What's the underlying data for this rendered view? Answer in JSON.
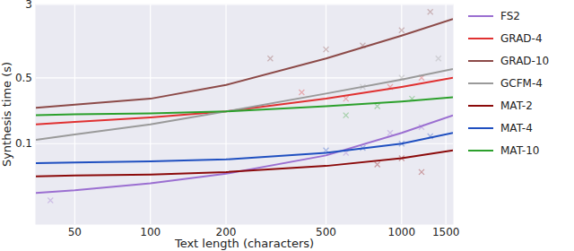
{
  "chart_data": {
    "type": "line",
    "x_label": "Text length (characters)",
    "y_label": "Synthesis time (s)",
    "log": true,
    "grid": true,
    "legend": "right",
    "marker": "x",
    "xlim": [
      35,
      1600
    ],
    "ylim": [
      0.014,
      3
    ],
    "xticks": [
      50,
      100,
      200,
      500,
      1000,
      1500
    ],
    "yticks": [
      0.1,
      0.5,
      3
    ],
    "x": [
      35,
      50,
      100,
      200,
      500,
      1000,
      1600
    ],
    "series": [
      {
        "name": "FS2",
        "color": "#9b6fd1",
        "values": [
          0.03,
          0.032,
          0.038,
          0.048,
          0.075,
          0.13,
          0.2
        ],
        "scatter_x": [
          40,
          600,
          900,
          1200
        ],
        "scatter_y": [
          0.025,
          0.08,
          0.13,
          0.15
        ]
      },
      {
        "name": "GRAD-4",
        "color": "#e03131",
        "values": [
          0.16,
          0.17,
          0.19,
          0.22,
          0.3,
          0.4,
          0.5
        ],
        "scatter_x": [
          400,
          600,
          900,
          1200
        ],
        "scatter_y": [
          0.35,
          0.3,
          0.4,
          0.5
        ]
      },
      {
        "name": "GRAD-10",
        "color": "#8c4a48",
        "values": [
          0.24,
          0.26,
          0.3,
          0.42,
          0.8,
          1.4,
          2.1
        ],
        "scatter_x": [
          300,
          500,
          700,
          1000,
          1300
        ],
        "scatter_y": [
          0.8,
          1.0,
          1.1,
          1.6,
          2.5
        ]
      },
      {
        "name": "GCFM-4",
        "color": "#9a9a9a",
        "values": [
          0.11,
          0.125,
          0.16,
          0.22,
          0.34,
          0.48,
          0.62
        ],
        "scatter_x": [
          700,
          1000,
          1400
        ],
        "scatter_y": [
          0.4,
          0.5,
          0.8
        ]
      },
      {
        "name": "MAT-2",
        "color": "#8b0a0a",
        "values": [
          0.045,
          0.046,
          0.047,
          0.05,
          0.058,
          0.07,
          0.085
        ],
        "scatter_x": [
          800,
          1000,
          1200
        ],
        "scatter_y": [
          0.06,
          0.07,
          0.05
        ]
      },
      {
        "name": "MAT-4",
        "color": "#1f4fc0",
        "values": [
          0.062,
          0.063,
          0.065,
          0.068,
          0.08,
          0.1,
          0.13
        ],
        "scatter_x": [
          500,
          700,
          1000,
          1300
        ],
        "scatter_y": [
          0.085,
          0.09,
          0.1,
          0.12
        ]
      },
      {
        "name": "MAT-10",
        "color": "#2ca02c",
        "values": [
          0.2,
          0.205,
          0.21,
          0.22,
          0.25,
          0.28,
          0.31
        ],
        "scatter_x": [
          600,
          800,
          1100
        ],
        "scatter_y": [
          0.2,
          0.25,
          0.3
        ]
      }
    ]
  }
}
